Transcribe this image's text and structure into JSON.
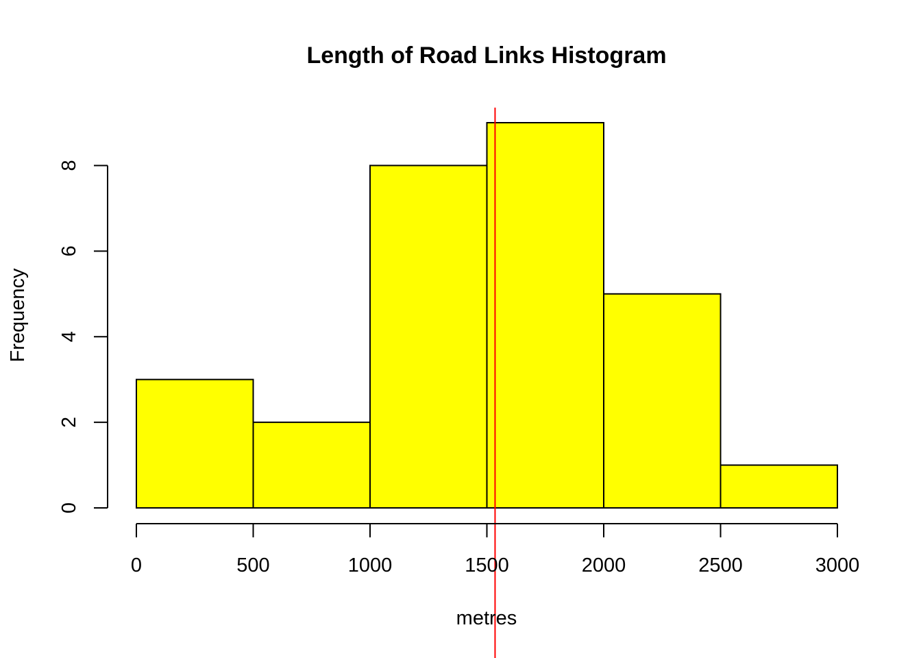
{
  "chart_data": {
    "type": "bar",
    "histogram": true,
    "title": "Length of Road Links Histogram",
    "xlabel": "metres",
    "ylabel": "Frequency",
    "bin_edges": [
      0,
      500,
      1000,
      1500,
      2000,
      2500,
      3000
    ],
    "values": [
      3,
      2,
      8,
      9,
      5,
      1
    ],
    "xlim": [
      0,
      3000
    ],
    "ylim": [
      0,
      9
    ],
    "x_ticks": [
      0,
      500,
      1000,
      1500,
      2000,
      2500,
      3000
    ],
    "y_ticks": [
      0,
      2,
      4,
      6,
      8
    ],
    "reference_line": {
      "x": 1535,
      "color": "#ff0000"
    },
    "bar_color": "#ffff00",
    "border_color": "#000000",
    "grid": false,
    "legend": "none"
  }
}
